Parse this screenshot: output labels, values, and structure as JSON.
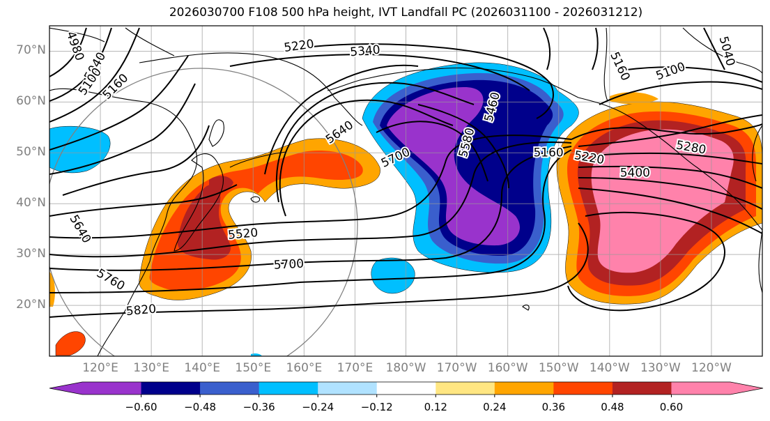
{
  "title": "2026030700 F108 500 hPa height, IVT Landfall PC (2026031100 - 2026031212)",
  "map": {
    "projection": "PlateCarree",
    "extent": {
      "lon_min": 110,
      "lon_max": 250,
      "lat_min": 10,
      "lat_max": 75
    },
    "lat_ticks": [
      {
        "value": 70,
        "label": "70°N"
      },
      {
        "value": 60,
        "label": "60°N"
      },
      {
        "value": 50,
        "label": "50°N"
      },
      {
        "value": 40,
        "label": "40°N"
      },
      {
        "value": 30,
        "label": "30°N"
      },
      {
        "value": 20,
        "label": "20°N"
      }
    ],
    "lon_ticks": [
      {
        "value": 120,
        "label": "120°E"
      },
      {
        "value": 130,
        "label": "130°E"
      },
      {
        "value": 140,
        "label": "140°E"
      },
      {
        "value": 150,
        "label": "150°E"
      },
      {
        "value": 160,
        "label": "160°E"
      },
      {
        "value": 170,
        "label": "170°E"
      },
      {
        "value": 180,
        "label": "180°W"
      },
      {
        "value": 190,
        "label": "170°W"
      },
      {
        "value": 200,
        "label": "160°W"
      },
      {
        "value": 210,
        "label": "150°W"
      },
      {
        "value": 220,
        "label": "140°W"
      },
      {
        "value": 230,
        "label": "130°W"
      },
      {
        "value": 240,
        "label": "120°W"
      }
    ],
    "contour_labels": [
      {
        "text": "4980",
        "lon": 115,
        "lat": 71,
        "rot": 70
      },
      {
        "text": "5040",
        "lon": 119,
        "lat": 67,
        "rot": -60
      },
      {
        "text": "5100",
        "lon": 118,
        "lat": 64,
        "rot": -55
      },
      {
        "text": "5160",
        "lon": 123,
        "lat": 63,
        "rot": -45
      },
      {
        "text": "5220",
        "lon": 159,
        "lat": 71,
        "rot": -8
      },
      {
        "text": "5340",
        "lon": 172,
        "lat": 70,
        "rot": -5
      },
      {
        "text": "5640",
        "lon": 167,
        "lat": 54,
        "rot": -35
      },
      {
        "text": "5700",
        "lon": 178,
        "lat": 49,
        "rot": -25
      },
      {
        "text": "5520",
        "lon": 148,
        "lat": 34,
        "rot": -5
      },
      {
        "text": "5700",
        "lon": 157,
        "lat": 28,
        "rot": -3
      },
      {
        "text": "5640",
        "lon": 116,
        "lat": 35,
        "rot": 60
      },
      {
        "text": "5760",
        "lon": 122,
        "lat": 25,
        "rot": 30
      },
      {
        "text": "5820",
        "lon": 128,
        "lat": 19,
        "rot": -5
      },
      {
        "text": "5160",
        "lon": 208,
        "lat": 50,
        "rot": 0
      },
      {
        "text": "5220",
        "lon": 216,
        "lat": 49,
        "rot": 10
      },
      {
        "text": "5280",
        "lon": 236,
        "lat": 51,
        "rot": 10
      },
      {
        "text": "5400",
        "lon": 225,
        "lat": 46,
        "rot": 0
      },
      {
        "text": "5100",
        "lon": 232,
        "lat": 66,
        "rot": -20
      },
      {
        "text": "5160",
        "lon": 222,
        "lat": 67,
        "rot": 65
      },
      {
        "text": "5040",
        "lon": 243,
        "lat": 70,
        "rot": 75
      },
      {
        "text": "5460",
        "lon": 197,
        "lat": 59,
        "rot": -75
      },
      {
        "text": "5580",
        "lon": 192,
        "lat": 52,
        "rot": -75
      }
    ]
  },
  "colorbar": {
    "colors": [
      "#9933cc",
      "#00008b",
      "#3a5fcd",
      "#00bfff",
      "#b0e2ff",
      "#ffffff",
      "#ffe682",
      "#ffa500",
      "#ff4500",
      "#b22222",
      "#ff82ab"
    ],
    "under_color": "#9933cc",
    "over_color": "#ff82ab",
    "ticks": [
      {
        "value": -0.6,
        "label": "−0.60"
      },
      {
        "value": -0.48,
        "label": "−0.48"
      },
      {
        "value": -0.36,
        "label": "−0.36"
      },
      {
        "value": -0.24,
        "label": "−0.24"
      },
      {
        "value": -0.12,
        "label": "−0.12"
      },
      {
        "value": 0.12,
        "label": "0.12"
      },
      {
        "value": 0.24,
        "label": "0.24"
      },
      {
        "value": 0.36,
        "label": "0.36"
      },
      {
        "value": 0.48,
        "label": "0.48"
      },
      {
        "value": 0.6,
        "label": "0.60"
      }
    ]
  }
}
